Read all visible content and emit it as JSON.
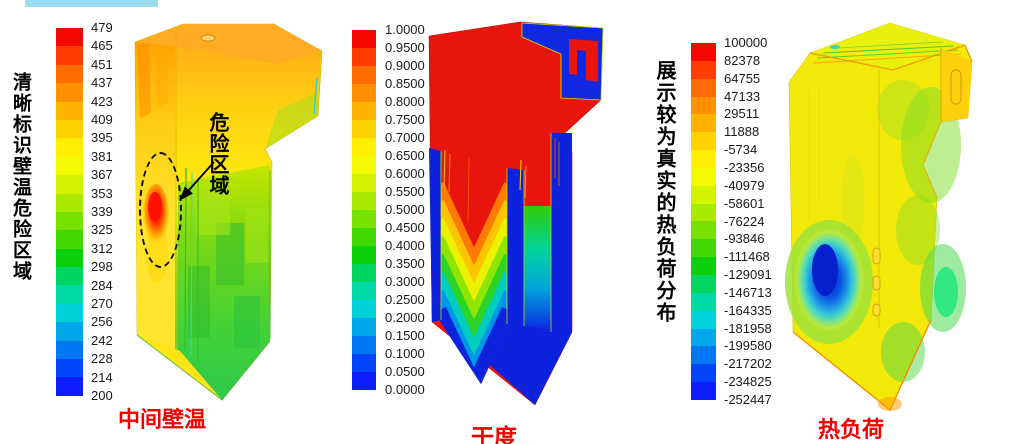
{
  "page": {
    "background": "#ffffff",
    "top_strip_color": "#9cdcf2"
  },
  "colormap": [
    "#f50800",
    "#ff3d00",
    "#ff6c00",
    "#ff9100",
    "#ffb300",
    "#ffd300",
    "#ffef00",
    "#f3fa00",
    "#d3f300",
    "#a9ea00",
    "#78e100",
    "#41d800",
    "#0bd00b",
    "#00d55f",
    "#00d9a5",
    "#00d2d9",
    "#00a7e9",
    "#0078f3",
    "#0046f8",
    "#0d1dfb"
  ],
  "annotation": {
    "label": "危险区域"
  },
  "panels": [
    {
      "name": "wall-temperature",
      "side_caption": "清晰标识壁温危险区域",
      "caption": "中间壁温",
      "caption_color": "#f20000",
      "scale_values": [
        "479",
        "465",
        "451",
        "437",
        "423",
        "409",
        "395",
        "381",
        "367",
        "353",
        "339",
        "325",
        "312",
        "298",
        "284",
        "270",
        "256",
        "242",
        "228",
        "214",
        "200"
      ]
    },
    {
      "name": "dryness",
      "caption": "干度",
      "caption_color": "#f20000",
      "scale_values": [
        "1.0000",
        "0.9500",
        "0.9000",
        "0.8500",
        "0.8000",
        "0.7500",
        "0.7000",
        "0.6500",
        "0.6000",
        "0.5500",
        "0.5000",
        "0.4500",
        "0.4000",
        "0.3500",
        "0.3000",
        "0.2500",
        "0.2000",
        "0.1500",
        "0.1000",
        "0.0500",
        "0.0000"
      ]
    },
    {
      "name": "heat-load",
      "side_caption": "展示较为真实的热负荷分布",
      "caption": "热负荷",
      "caption_color": "#f20000",
      "scale_values": [
        "100000",
        "82378",
        "64755",
        "47133",
        "29511",
        "11888",
        "-5734",
        "-23356",
        "-40979",
        "-58601",
        "-76224",
        "-93846",
        "-111468",
        "-129091",
        "-146713",
        "-164335",
        "-181958",
        "-199580",
        "-217202",
        "-234825",
        "-252447"
      ]
    }
  ],
  "chart_data": [
    {
      "type": "heatmap",
      "title": "中间壁温",
      "subject": "boiler middle wall temperature contour",
      "legend_position": "left",
      "legend_values": [
        479,
        465,
        451,
        437,
        423,
        409,
        395,
        381,
        367,
        353,
        339,
        325,
        312,
        298,
        284,
        270,
        256,
        242,
        228,
        214,
        200
      ],
      "colormap": "rainbow red(max) to blue(min)",
      "annotations": [
        "危险区域 dashed ellipse marking red hot spot on left wall"
      ],
      "side_note": "清晰标识壁温危险区域"
    },
    {
      "type": "heatmap",
      "title": "干度",
      "subject": "boiler steam dryness contour",
      "legend_position": "left",
      "legend_values": [
        1.0,
        0.95,
        0.9,
        0.85,
        0.8,
        0.75,
        0.7,
        0.65,
        0.6,
        0.55,
        0.5,
        0.45,
        0.4,
        0.35,
        0.3,
        0.25,
        0.2,
        0.15,
        0.1,
        0.05,
        0.0
      ],
      "colormap": "rainbow red(max) to blue(min)",
      "annotations": []
    },
    {
      "type": "heatmap",
      "title": "热负荷",
      "subject": "boiler heat load distribution contour",
      "legend_position": "left",
      "legend_values": [
        100000,
        82378,
        64755,
        47133,
        29511,
        11888,
        -5734,
        -23356,
        -40979,
        -58601,
        -76224,
        -93846,
        -111468,
        -129091,
        -146713,
        -164335,
        -181958,
        -199580,
        -217202,
        -234825,
        -252447
      ],
      "colormap": "rainbow red(max) to blue(min)",
      "annotations": [],
      "side_note": "展示较为真实的热负荷分布"
    }
  ]
}
